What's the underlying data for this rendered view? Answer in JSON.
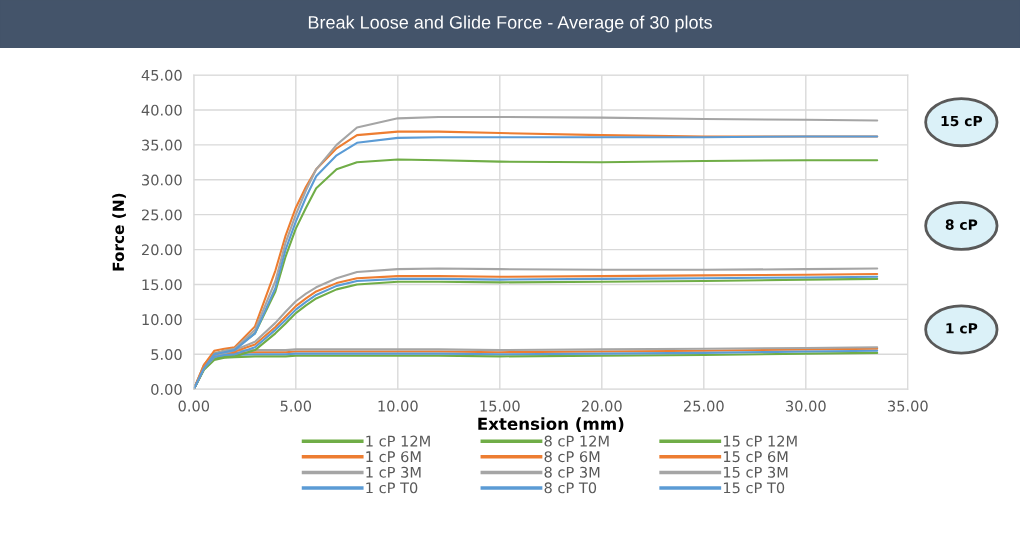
{
  "chart_data": {
    "type": "line",
    "title": "Break Loose and Glide Force - Average of 30 plots",
    "xlabel": "Extension (mm)",
    "ylabel": "Force (N)",
    "x": [
      0,
      0.5,
      1,
      1.5,
      2,
      3,
      4,
      4.5,
      5,
      5.5,
      6,
      7,
      8,
      10,
      12,
      15,
      20,
      25,
      30,
      33.5
    ],
    "series": [
      {
        "name": "1 cP 12M",
        "color": "#70ad47",
        "values": [
          0,
          2.8,
          4.2,
          4.5,
          4.6,
          4.7,
          4.7,
          4.7,
          4.8,
          4.8,
          4.8,
          4.8,
          4.8,
          4.8,
          4.8,
          4.7,
          4.8,
          4.9,
          5.1,
          5.2
        ]
      },
      {
        "name": "1 cP 6M",
        "color": "#ed7d31",
        "values": [
          0,
          3.3,
          4.9,
          5.1,
          5.2,
          5.3,
          5.3,
          5.3,
          5.4,
          5.4,
          5.4,
          5.4,
          5.4,
          5.4,
          5.4,
          5.3,
          5.4,
          5.5,
          5.7,
          5.8
        ]
      },
      {
        "name": "1 cP 3M",
        "color": "#a5a5a5",
        "values": [
          0,
          3.5,
          5.2,
          5.4,
          5.5,
          5.6,
          5.6,
          5.6,
          5.7,
          5.7,
          5.7,
          5.7,
          5.7,
          5.7,
          5.7,
          5.6,
          5.7,
          5.8,
          5.9,
          6
        ]
      },
      {
        "name": "1 cP T0",
        "color": "#5b9bd5",
        "values": [
          0,
          3,
          4.5,
          4.8,
          4.9,
          5,
          5,
          5,
          5.1,
          5.1,
          5.1,
          5.1,
          5.1,
          5.1,
          5.1,
          5,
          5.1,
          5.2,
          5.4,
          5.5
        ]
      },
      {
        "name": "8 cP 12M",
        "color": "#70ad47",
        "values": [
          0,
          2.9,
          4.4,
          4.6,
          4.7,
          5.6,
          8,
          9.4,
          10.9,
          12,
          13,
          14.3,
          15,
          15.4,
          15.4,
          15.3,
          15.4,
          15.5,
          15.7,
          15.8
        ]
      },
      {
        "name": "8 cP 6M",
        "color": "#ed7d31",
        "values": [
          0,
          3.1,
          4.8,
          5.2,
          5.4,
          6.4,
          8.9,
          10.4,
          11.9,
          13,
          14,
          15.2,
          15.9,
          16.2,
          16.2,
          16.1,
          16.2,
          16.3,
          16.4,
          16.5
        ]
      },
      {
        "name": "8 cP 3M",
        "color": "#a5a5a5",
        "values": [
          0,
          3,
          4.6,
          5.1,
          5.6,
          6.8,
          9.5,
          11.1,
          12.6,
          13.7,
          14.6,
          15.9,
          16.8,
          17.2,
          17.3,
          17.2,
          17.1,
          17.1,
          17.2,
          17.3
        ]
      },
      {
        "name": "8 cP T0",
        "color": "#5b9bd5",
        "values": [
          0,
          3,
          4.6,
          4.9,
          5,
          6,
          8.5,
          9.9,
          11.4,
          12.5,
          13.5,
          14.8,
          15.5,
          15.8,
          15.8,
          15.7,
          15.8,
          15.9,
          16,
          16.1
        ]
      },
      {
        "name": "15 cP 12M",
        "color": "#70ad47",
        "values": [
          0,
          3,
          5,
          5.5,
          5.8,
          8,
          14,
          19,
          23,
          26,
          28.8,
          31.5,
          32.5,
          32.9,
          32.8,
          32.6,
          32.5,
          32.7,
          32.8,
          32.8
        ]
      },
      {
        "name": "15 cP 6M",
        "color": "#ed7d31",
        "values": [
          0,
          3.5,
          5.5,
          5.8,
          6,
          9,
          17,
          22,
          26,
          29,
          31.5,
          34.5,
          36.4,
          36.9,
          36.9,
          36.7,
          36.4,
          36.2,
          36.2,
          36.2
        ]
      },
      {
        "name": "15 cP 3M",
        "color": "#a5a5a5",
        "values": [
          0,
          3,
          5,
          5.5,
          5.8,
          8.5,
          15.5,
          21,
          25,
          28.5,
          31.5,
          35,
          37.5,
          38.8,
          39,
          39,
          38.9,
          38.7,
          38.6,
          38.5
        ]
      },
      {
        "name": "15 cP T0",
        "color": "#5b9bd5",
        "values": [
          0,
          3,
          5,
          5.3,
          5.6,
          8,
          14.5,
          20,
          24,
          27.5,
          30.5,
          33.5,
          35.3,
          36,
          36.1,
          36.1,
          36.1,
          36.1,
          36.2,
          36.2
        ]
      }
    ],
    "xlim": [
      0,
      35
    ],
    "ylim": [
      0,
      45
    ],
    "xticks": [
      {
        "value": 0,
        "label": "0.00"
      },
      {
        "value": 5,
        "label": "5.00"
      },
      {
        "value": 10,
        "label": "10.00"
      },
      {
        "value": 15,
        "label": "15.00"
      },
      {
        "value": 20,
        "label": "20.00"
      },
      {
        "value": 25,
        "label": "25.00"
      },
      {
        "value": 30,
        "label": "30.00"
      },
      {
        "value": 35,
        "label": "35.00"
      }
    ],
    "yticks": [
      {
        "value": 0,
        "label": "0.00"
      },
      {
        "value": 5,
        "label": "5.00"
      },
      {
        "value": 10,
        "label": "10.00"
      },
      {
        "value": 15,
        "label": "15.00"
      },
      {
        "value": 20,
        "label": "20.00"
      },
      {
        "value": 25,
        "label": "25.00"
      },
      {
        "value": 30,
        "label": "30.00"
      },
      {
        "value": 35,
        "label": "35.00"
      },
      {
        "value": 40,
        "label": "40.00"
      },
      {
        "value": 45,
        "label": "45.00"
      }
    ],
    "annotations": [
      "15 cP",
      "8 cP",
      "1 cP"
    ],
    "grid": true,
    "legend": "bottom",
    "marker": "none",
    "line_style": "solid"
  }
}
